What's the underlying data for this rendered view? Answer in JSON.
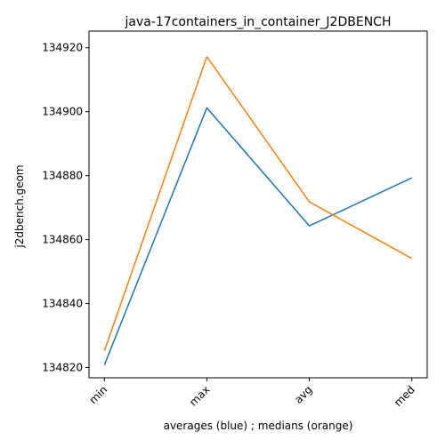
{
  "chart_data": {
    "type": "line",
    "title": "java-17containers_in_container_J2DBENCH",
    "xlabel": "averages (blue) ; medians (orange)",
    "ylabel": "j2dbench.geom",
    "categories": [
      "min",
      "max",
      "avg",
      "med"
    ],
    "ylim": [
      134816.8,
      134925.2
    ],
    "yticks": [
      134820,
      134840,
      134860,
      134880,
      134900,
      134920
    ],
    "ytick_labels": [
      "134820",
      "134840",
      "134860",
      "134880",
      "134900",
      "134920"
    ],
    "grid": false,
    "series": [
      {
        "color": "#1f77b4",
        "values": [
          134820.8,
          134901.2,
          134864.3,
          134879.3
        ]
      },
      {
        "color": "#ff7f0e",
        "values": [
          134825.2,
          134917.2,
          134871.8,
          134854.1
        ]
      }
    ]
  }
}
